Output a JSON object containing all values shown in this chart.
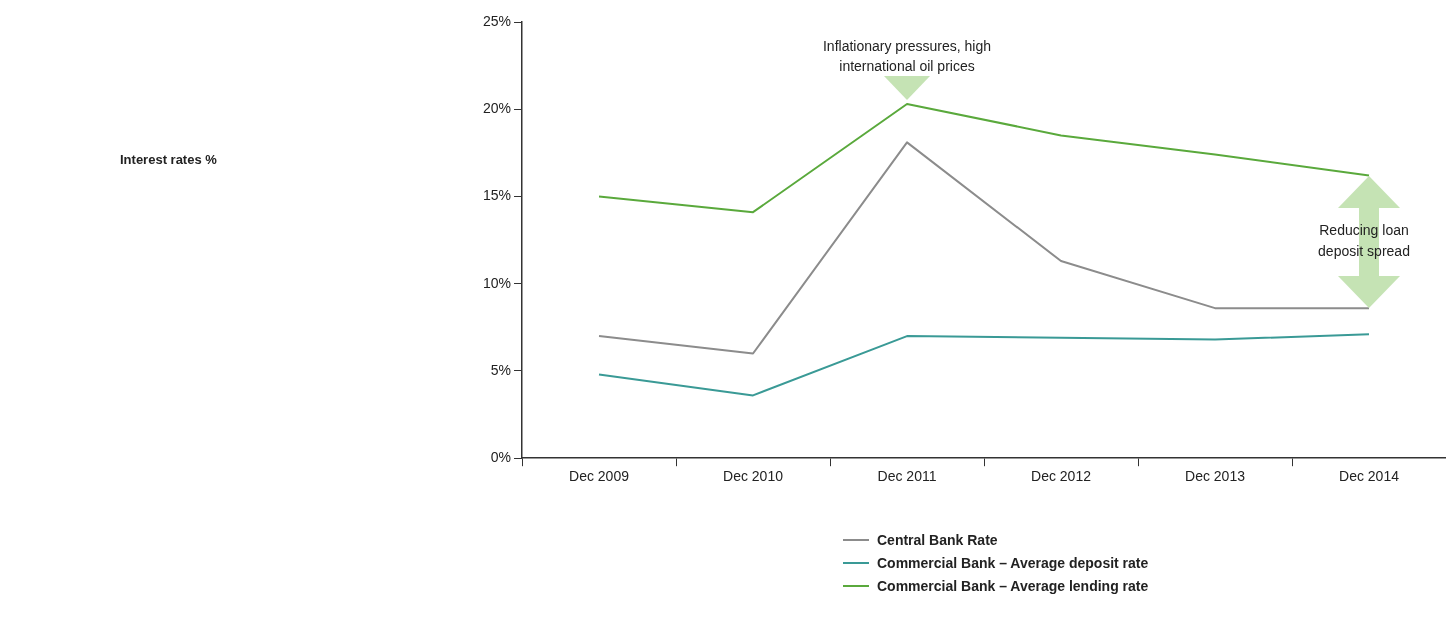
{
  "chart_data": {
    "type": "line",
    "categories": [
      "Dec 2009",
      "Dec 2010",
      "Dec 2011",
      "Dec 2012",
      "Dec 2013",
      "Dec 2014"
    ],
    "series": [
      {
        "name": "Central Bank Rate",
        "color": "#8c8c8c",
        "values": [
          7.0,
          6.0,
          18.1,
          11.3,
          8.6,
          8.6
        ]
      },
      {
        "name": "Commercial Bank – Average deposit rate",
        "color": "#3a9a96",
        "values": [
          4.8,
          3.6,
          7.0,
          6.9,
          6.8,
          7.1
        ]
      },
      {
        "name": "Commercial Bank – Average lending rate",
        "color": "#5aa93c",
        "values": [
          15.0,
          14.1,
          20.3,
          18.5,
          17.4,
          16.2
        ]
      }
    ],
    "ylim": [
      0,
      25
    ],
    "yticks": [
      {
        "value": 0,
        "label": "0%"
      },
      {
        "value": 5,
        "label": "5%"
      },
      {
        "value": 10,
        "label": "10%"
      },
      {
        "value": 15,
        "label": "15%"
      },
      {
        "value": 20,
        "label": "20%"
      },
      {
        "value": 25,
        "label": "25%"
      }
    ],
    "grid": false,
    "legend": "bottom",
    "marker": "none",
    "line_style": "solid",
    "annotations": [
      "Interest rates %",
      {
        "text": "Inflationary pressures, high international oil prices",
        "x": "Dec 2011",
        "y": 20.3
      },
      "Reducing loan deposit spread"
    ]
  }
}
